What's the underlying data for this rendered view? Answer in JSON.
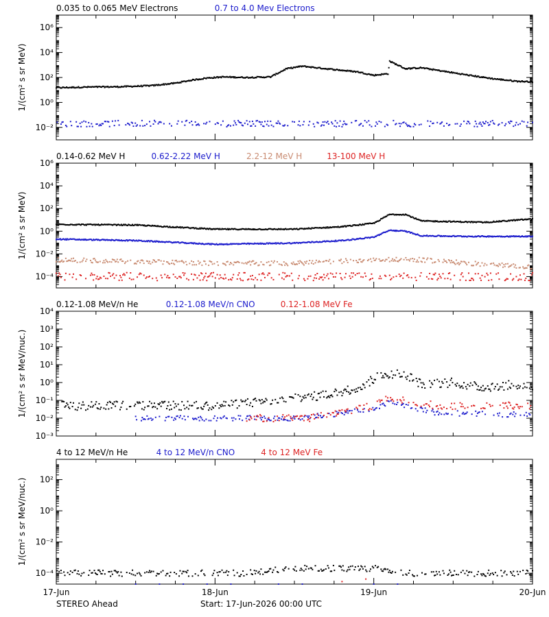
{
  "footer": {
    "spacecraft": "STEREO Ahead",
    "start": "Start: 17-Jun-2026 00:00 UTC"
  },
  "x_axis": {
    "ticks": [
      "17-Jun",
      "18-Jun",
      "19-Jun",
      "20-Jun"
    ],
    "range_days": [
      0,
      3
    ]
  },
  "chart_data": [
    {
      "type": "scatter",
      "ylabel": "1/(cm² s sr MeV)",
      "yscale": "log",
      "ylim": [
        0.001,
        10000000
      ],
      "yticks": [
        {
          "value": 0.01,
          "label": "10⁻²"
        },
        {
          "value": 1,
          "label": "10⁰"
        },
        {
          "value": 100,
          "label": "10²"
        },
        {
          "value": 10000,
          "label": "10⁴"
        },
        {
          "value": 1000000,
          "label": "10⁶"
        }
      ],
      "legend": [
        {
          "name": "0.035 to 0.065 MeV Electrons",
          "color": "#000000"
        },
        {
          "name": "0.7 to 4.0 Mev Electrons",
          "color": "#1a1acc"
        }
      ],
      "series": [
        {
          "name": "0.035 to 0.065 MeV Electrons",
          "color": "#000000",
          "style": "dense",
          "points": [
            [
              0,
              15
            ],
            [
              0.2,
              17
            ],
            [
              0.4,
              18
            ],
            [
              0.6,
              22
            ],
            [
              0.75,
              35
            ],
            [
              0.85,
              60
            ],
            [
              0.95,
              90
            ],
            [
              1.05,
              110
            ],
            [
              1.2,
              100
            ],
            [
              1.35,
              110
            ],
            [
              1.45,
              500
            ],
            [
              1.55,
              800
            ],
            [
              1.7,
              500
            ],
            [
              1.9,
              280
            ],
            [
              2.0,
              150
            ],
            [
              2.09,
              200
            ],
            [
              2.1,
              2000
            ],
            [
              2.2,
              500
            ],
            [
              2.3,
              600
            ],
            [
              2.45,
              300
            ],
            [
              2.6,
              150
            ],
            [
              2.75,
              80
            ],
            [
              2.9,
              50
            ],
            [
              3.0,
              45
            ]
          ],
          "jitter": 0.05
        },
        {
          "name": "0.7 to 4.0 Mev Electrons",
          "color": "#1a1acc",
          "style": "sparse",
          "points": [
            [
              0,
              0.02
            ],
            [
              3,
              0.02
            ]
          ],
          "jitter": 0.25
        }
      ]
    },
    {
      "type": "scatter",
      "ylabel": "1/(cm² s sr MeV)",
      "yscale": "log",
      "ylim": [
        1e-05,
        1000000
      ],
      "yticks": [
        {
          "value": 0.0001,
          "label": "10⁻⁴"
        },
        {
          "value": 0.01,
          "label": "10⁻²"
        },
        {
          "value": 1,
          "label": "10⁰"
        },
        {
          "value": 100,
          "label": "10²"
        },
        {
          "value": 10000,
          "label": "10⁴"
        },
        {
          "value": 1000000,
          "label": "10⁶"
        }
      ],
      "legend": [
        {
          "name": "0.14-0.62 MeV H",
          "color": "#000000"
        },
        {
          "name": "0.62-2.22 MeV H",
          "color": "#1a1acc"
        },
        {
          "name": "2.2-12 MeV H",
          "color": "#c88a70"
        },
        {
          "name": "13-100 MeV H",
          "color": "#dd2222"
        }
      ],
      "series": [
        {
          "name": "0.14-0.62 MeV H",
          "color": "#000000",
          "style": "dense",
          "points": [
            [
              0,
              4
            ],
            [
              0.5,
              3.5
            ],
            [
              1.0,
              1.5
            ],
            [
              1.5,
              1.5
            ],
            [
              1.8,
              2.5
            ],
            [
              2.0,
              5
            ],
            [
              2.1,
              30
            ],
            [
              2.2,
              30
            ],
            [
              2.3,
              8
            ],
            [
              2.5,
              7
            ],
            [
              2.7,
              6
            ],
            [
              3.0,
              12
            ]
          ],
          "jitter": 0.05
        },
        {
          "name": "0.62-2.22 MeV H",
          "color": "#1a1acc",
          "style": "dense",
          "points": [
            [
              0,
              0.2
            ],
            [
              0.5,
              0.15
            ],
            [
              1.0,
              0.07
            ],
            [
              1.5,
              0.09
            ],
            [
              1.8,
              0.15
            ],
            [
              2.0,
              0.3
            ],
            [
              2.1,
              1.2
            ],
            [
              2.2,
              1.0
            ],
            [
              2.3,
              0.4
            ],
            [
              2.6,
              0.35
            ],
            [
              3.0,
              0.35
            ]
          ],
          "jitter": 0.05
        },
        {
          "name": "2.2-12 MeV H",
          "color": "#c88a70",
          "style": "medium",
          "points": [
            [
              0,
              0.003
            ],
            [
              1.0,
              0.0015
            ],
            [
              1.5,
              0.0015
            ],
            [
              2.0,
              0.003
            ],
            [
              2.3,
              0.003
            ],
            [
              2.6,
              0.0015
            ],
            [
              3.0,
              0.0007
            ]
          ],
          "jitter": 0.2
        },
        {
          "name": "13-100 MeV H",
          "color": "#dd2222",
          "style": "sparse",
          "points": [
            [
              0,
              0.0001
            ],
            [
              3,
              0.0001
            ]
          ],
          "jitter": 0.35
        }
      ]
    },
    {
      "type": "scatter",
      "ylabel": "1/(cm² s sr MeV/nuc.)",
      "yscale": "log",
      "ylim": [
        0.001,
        10000
      ],
      "yticks": [
        {
          "value": 0.001,
          "label": "10⁻³"
        },
        {
          "value": 0.01,
          "label": "10⁻²"
        },
        {
          "value": 0.1,
          "label": "10⁻¹"
        },
        {
          "value": 1,
          "label": "10⁰"
        },
        {
          "value": 10,
          "label": "10¹"
        },
        {
          "value": 100,
          "label": "10²"
        },
        {
          "value": 1000,
          "label": "10³"
        },
        {
          "value": 10000,
          "label": "10⁴"
        }
      ],
      "legend": [
        {
          "name": "0.12-1.08 MeV/n He",
          "color": "#000000"
        },
        {
          "name": "0.12-1.08 MeV/n CNO",
          "color": "#1a1acc"
        },
        {
          "name": "0.12-1.08 MeV Fe",
          "color": "#dd2222"
        }
      ],
      "series": [
        {
          "name": "0.12-1.08 MeV/n He",
          "color": "#000000",
          "style": "medium",
          "points": [
            [
              0,
              0.05
            ],
            [
              0.5,
              0.05
            ],
            [
              1.0,
              0.05
            ],
            [
              1.4,
              0.1
            ],
            [
              1.7,
              0.2
            ],
            [
              1.9,
              0.5
            ],
            [
              2.0,
              1.5
            ],
            [
              2.05,
              3
            ],
            [
              2.2,
              3
            ],
            [
              2.3,
              0.8
            ],
            [
              2.5,
              1.0
            ],
            [
              2.7,
              0.5
            ],
            [
              2.9,
              0.8
            ],
            [
              3.0,
              0.6
            ]
          ],
          "jitter": 0.25
        },
        {
          "name": "0.12-1.08 MeV/n CNO",
          "color": "#1a1acc",
          "style": "sparse",
          "points": [
            [
              0.5,
              0.01
            ],
            [
              1.0,
              0.01
            ],
            [
              1.5,
              0.01
            ],
            [
              2.0,
              0.03
            ],
            [
              2.1,
              0.08
            ],
            [
              2.2,
              0.05
            ],
            [
              2.4,
              0.02
            ],
            [
              3.0,
              0.015
            ]
          ],
          "jitter": 0.15
        },
        {
          "name": "0.12-1.08 MeV Fe",
          "color": "#dd2222",
          "style": "sparse",
          "points": [
            [
              1.2,
              0.01
            ],
            [
              1.6,
              0.01
            ],
            [
              2.0,
              0.05
            ],
            [
              2.1,
              0.15
            ],
            [
              2.2,
              0.1
            ],
            [
              2.4,
              0.05
            ],
            [
              3.0,
              0.05
            ]
          ],
          "jitter": 0.2
        }
      ]
    },
    {
      "type": "scatter",
      "ylabel": "1/(cm² s sr MeV/nuc.)",
      "yscale": "log",
      "ylim": [
        2e-05,
        2000
      ],
      "yticks": [
        {
          "value": 0.0001,
          "label": "10⁻⁴"
        },
        {
          "value": 0.01,
          "label": "10⁻²"
        },
        {
          "value": 1,
          "label": "10⁰"
        },
        {
          "value": 100,
          "label": "10²"
        }
      ],
      "legend": [
        {
          "name": "4 to 12 MeV/n He",
          "color": "#000000"
        },
        {
          "name": "4 to 12 MeV/n CNO",
          "color": "#1a1acc"
        },
        {
          "name": "4 to 12 MeV Fe",
          "color": "#dd2222"
        }
      ],
      "series": [
        {
          "name": "4 to 12 MeV/n He",
          "color": "#000000",
          "style": "sparse",
          "points": [
            [
              0,
              0.0001
            ],
            [
              1.2,
              0.0001
            ],
            [
              1.5,
              0.0002
            ],
            [
              2.0,
              0.0002
            ],
            [
              2.2,
              0.0001
            ],
            [
              3.0,
              0.0001
            ]
          ],
          "jitter": 0.2
        },
        {
          "name": "4 to 12 MeV/n CNO",
          "color": "#1a1acc",
          "style": "rare",
          "points": [
            [
              0.5,
              2e-05
            ],
            [
              2.5,
              2e-05
            ]
          ],
          "jitter": 0.0
        },
        {
          "name": "4 to 12 MeV Fe",
          "color": "#dd2222",
          "style": "rare",
          "points": [
            [
              1.65,
              2e-05
            ],
            [
              2.3,
              0.0001
            ]
          ],
          "jitter": 0.0
        }
      ]
    }
  ]
}
